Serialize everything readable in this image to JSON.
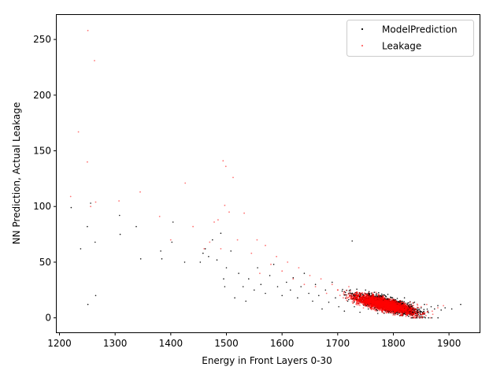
{
  "chart_data": {
    "type": "scatter",
    "title": "",
    "xlabel": "Energy in Front Layers 0-30",
    "ylabel": "NN Prediction, Actual Leakage",
    "xlim": [
      1195,
      1955
    ],
    "ylim": [
      -13,
      272
    ],
    "xticks": [
      1200,
      1300,
      1400,
      1500,
      1600,
      1700,
      1800,
      1900
    ],
    "yticks": [
      0,
      50,
      100,
      150,
      200,
      250
    ],
    "grid": false,
    "legend_position": "top-right",
    "series": [
      {
        "name": "ModelPrediction",
        "color": "#000000",
        "marker": "point",
        "dense_region": {
          "x_center": 1790,
          "y_center": 12,
          "x_spread": 45,
          "y_spread": 4
        },
        "points": [
          [
            1221,
            99
          ],
          [
            1238,
            62
          ],
          [
            1250,
            82
          ],
          [
            1251,
            12
          ],
          [
            1256,
            103
          ],
          [
            1264,
            68
          ],
          [
            1265,
            20
          ],
          [
            1308,
            92
          ],
          [
            1309,
            75
          ],
          [
            1338,
            82
          ],
          [
            1346,
            53
          ],
          [
            1382,
            60
          ],
          [
            1384,
            53
          ],
          [
            1402,
            68
          ],
          [
            1404,
            86
          ],
          [
            1425,
            50
          ],
          [
            1453,
            50
          ],
          [
            1458,
            58
          ],
          [
            1462,
            62
          ],
          [
            1468,
            55
          ],
          [
            1475,
            70
          ],
          [
            1483,
            52
          ],
          [
            1490,
            76
          ],
          [
            1495,
            35
          ],
          [
            1497,
            28
          ],
          [
            1500,
            45
          ],
          [
            1508,
            60
          ],
          [
            1515,
            18
          ],
          [
            1522,
            40
          ],
          [
            1530,
            28
          ],
          [
            1535,
            15
          ],
          [
            1540,
            35
          ],
          [
            1550,
            25
          ],
          [
            1556,
            45
          ],
          [
            1562,
            30
          ],
          [
            1570,
            22
          ],
          [
            1578,
            38
          ],
          [
            1585,
            48
          ],
          [
            1592,
            28
          ],
          [
            1600,
            20
          ],
          [
            1608,
            32
          ],
          [
            1615,
            25
          ],
          [
            1620,
            36
          ],
          [
            1628,
            18
          ],
          [
            1634,
            28
          ],
          [
            1640,
            40
          ],
          [
            1648,
            22
          ],
          [
            1655,
            15
          ],
          [
            1660,
            30
          ],
          [
            1666,
            20
          ],
          [
            1672,
            8
          ],
          [
            1678,
            25
          ],
          [
            1684,
            14
          ],
          [
            1690,
            32
          ],
          [
            1696,
            18
          ],
          [
            1702,
            10
          ],
          [
            1708,
            24
          ],
          [
            1712,
            6
          ],
          [
            1718,
            15
          ],
          [
            1722,
            20
          ],
          [
            1726,
            69
          ],
          [
            1730,
            10
          ],
          [
            1735,
            22
          ],
          [
            1740,
            5
          ],
          [
            1745,
            14
          ],
          [
            1750,
            25
          ],
          [
            1755,
            8
          ],
          [
            1760,
            18
          ],
          [
            1766,
            12
          ],
          [
            1772,
            4
          ],
          [
            1778,
            20
          ],
          [
            1784,
            10
          ],
          [
            1790,
            6
          ],
          [
            1796,
            15
          ],
          [
            1802,
            9
          ],
          [
            1808,
            3
          ],
          [
            1814,
            12
          ],
          [
            1820,
            18
          ],
          [
            1826,
            7
          ],
          [
            1832,
            10
          ],
          [
            1838,
            14
          ],
          [
            1844,
            5
          ],
          [
            1850,
            9
          ],
          [
            1856,
            12
          ],
          [
            1862,
            6
          ],
          [
            1868,
            10
          ],
          [
            1874,
            8
          ],
          [
            1880,
            11
          ],
          [
            1886,
            7
          ],
          [
            1893,
            9
          ],
          [
            1905,
            8
          ],
          [
            1921,
            12
          ]
        ]
      },
      {
        "name": "Leakage",
        "color": "#ff0000",
        "marker": "point",
        "dense_region": {
          "x_center": 1785,
          "y_center": 12,
          "x_spread": 42,
          "y_spread": 4
        },
        "points": [
          [
            1220,
            109
          ],
          [
            1234,
            167
          ],
          [
            1250,
            140
          ],
          [
            1251,
            258
          ],
          [
            1256,
            100
          ],
          [
            1263,
            231
          ],
          [
            1265,
            104
          ],
          [
            1307,
            105
          ],
          [
            1345,
            113
          ],
          [
            1380,
            91
          ],
          [
            1400,
            70
          ],
          [
            1426,
            121
          ],
          [
            1440,
            82
          ],
          [
            1460,
            62
          ],
          [
            1470,
            68
          ],
          [
            1478,
            86
          ],
          [
            1485,
            88
          ],
          [
            1490,
            62
          ],
          [
            1494,
            141
          ],
          [
            1497,
            101
          ],
          [
            1499,
            136
          ],
          [
            1505,
            95
          ],
          [
            1512,
            126
          ],
          [
            1520,
            70
          ],
          [
            1532,
            94
          ],
          [
            1545,
            58
          ],
          [
            1555,
            70
          ],
          [
            1560,
            40
          ],
          [
            1570,
            65
          ],
          [
            1580,
            48
          ],
          [
            1590,
            55
          ],
          [
            1600,
            42
          ],
          [
            1610,
            50
          ],
          [
            1620,
            35
          ],
          [
            1630,
            45
          ],
          [
            1640,
            30
          ],
          [
            1650,
            38
          ],
          [
            1660,
            28
          ],
          [
            1670,
            35
          ],
          [
            1680,
            22
          ],
          [
            1690,
            30
          ],
          [
            1700,
            25
          ],
          [
            1710,
            18
          ],
          [
            1720,
            28
          ],
          [
            1730,
            15
          ],
          [
            1740,
            22
          ],
          [
            1750,
            12
          ],
          [
            1760,
            20
          ],
          [
            1770,
            10
          ],
          [
            1780,
            18
          ],
          [
            1790,
            8
          ],
          [
            1800,
            15
          ],
          [
            1810,
            6
          ],
          [
            1820,
            12
          ],
          [
            1830,
            14
          ],
          [
            1840,
            8
          ],
          [
            1850,
            10
          ],
          [
            1860,
            12
          ],
          [
            1870,
            6
          ],
          [
            1880,
            9
          ],
          [
            1890,
            11
          ]
        ]
      }
    ]
  }
}
